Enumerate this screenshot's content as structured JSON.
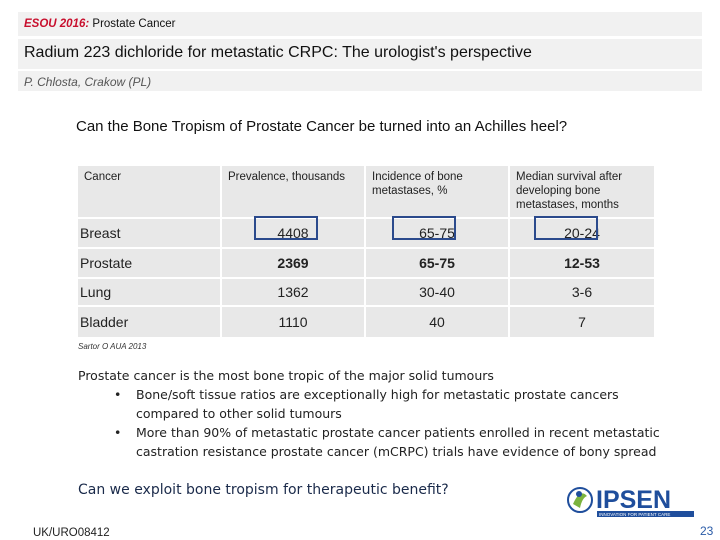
{
  "header": {
    "conference_abbr": "ESOU 2016:",
    "conference_topic": " Prostate Cancer",
    "talk_title": "Radium 223 dichloride for metastatic CRPC: The urologist's perspective",
    "authors": "P. Chlosta, Crakow (PL)"
  },
  "question": "Can the Bone Tropism of Prostate Cancer be turned into an Achilles heel?",
  "table": {
    "headers": [
      "Cancer",
      "Prevalence, thousands",
      "Incidence of bone metastases, %",
      "Median survival after developing bone metastases, months"
    ],
    "rows": [
      [
        "Breast",
        "4408",
        "65-75",
        "20-24"
      ],
      [
        "Prostate",
        "2369",
        "65-75",
        "12-53"
      ],
      [
        "Lung",
        "1362",
        "30-40",
        "3-6"
      ],
      [
        "Bladder",
        "1110",
        "40",
        "7"
      ]
    ]
  },
  "source": "Sartor O AUA 2013",
  "summary": "Prostate cancer is the most bone tropic of the major solid tumours",
  "bullets": [
    [
      "Bone/soft tissue ratios are exceptionally high for metastatic prostate cancers",
      "compared to other solid tumours"
    ],
    [
      "More than 90% of metastatic prostate cancer patients enrolled in recent metastatic",
      "castration resistance prostate cancer (mCRPC) trials have evidence of bony spread"
    ]
  ],
  "bullet_glyph": "•",
  "final_question": "Can we exploit bone tropism for therapeutic benefit?",
  "logo": {
    "text": "IPSEN",
    "tagline": "INNOVATION FOR PATIENT CARE",
    "color": "#1f4e9c"
  },
  "footer_code": "UK/URO08412",
  "page_number": "23"
}
